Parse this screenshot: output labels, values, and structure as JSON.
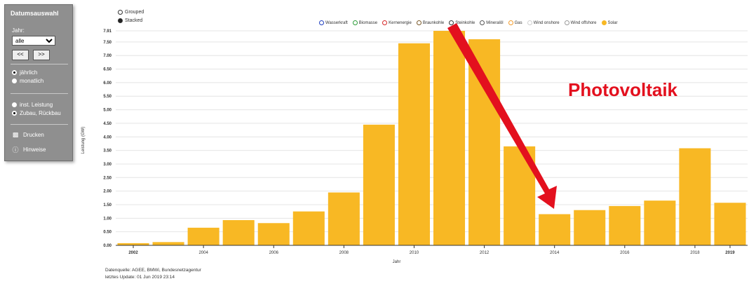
{
  "panel": {
    "title": "Datumsauswahl",
    "year_label": "Jahr:",
    "year_value": "alle",
    "prev_label": "<<",
    "next_label": ">>",
    "period_options": [
      {
        "label": "jährlich",
        "checked": true
      },
      {
        "label": "monatlich",
        "checked": false
      }
    ],
    "mode_options": [
      {
        "label": "inst. Leistung",
        "checked": false
      },
      {
        "label": "Zubau, Rückbau",
        "checked": true
      }
    ],
    "print_label": "Drucken",
    "info_label": "Hinweise"
  },
  "display_modes": {
    "grouped": "Grouped",
    "stacked": "Stacked",
    "selected": "stacked"
  },
  "legend": [
    {
      "name": "Wasserkraft",
      "color": "#1f3fbf"
    },
    {
      "name": "Biomasse",
      "color": "#2e9e3a"
    },
    {
      "name": "Kernenergie",
      "color": "#d62728"
    },
    {
      "name": "Braunkohle",
      "color": "#7a5a2a"
    },
    {
      "name": "Steinkohle",
      "color": "#333333"
    },
    {
      "name": "Mineralöl",
      "color": "#555555"
    },
    {
      "name": "Gas",
      "color": "#f39c2b"
    },
    {
      "name": "Wind onshore",
      "color": "#cfcfcf"
    },
    {
      "name": "Wind offshore",
      "color": "#9a9a9a"
    },
    {
      "name": "Solar",
      "color": "#f8b824",
      "filled": true
    }
  ],
  "chart_data": {
    "type": "bar",
    "title": "",
    "xlabel": "Jahr",
    "ylabel": "Leistung (GW)",
    "x": [
      2002,
      2003,
      2004,
      2005,
      2006,
      2007,
      2008,
      2009,
      2010,
      2011,
      2012,
      2013,
      2014,
      2015,
      2016,
      2017,
      2018,
      2019
    ],
    "series": [
      {
        "name": "Solar",
        "values": [
          0.08,
          0.12,
          0.65,
          0.93,
          0.82,
          1.25,
          1.95,
          4.45,
          7.45,
          7.91,
          7.6,
          3.65,
          1.15,
          1.3,
          1.45,
          1.65,
          3.58,
          1.57
        ]
      }
    ],
    "ylim": [
      0,
      7.91
    ],
    "yticks": [
      "0.00",
      "0.50",
      "1.00",
      "1.50",
      "2.00",
      "2.50",
      "3.00",
      "3.50",
      "4.00",
      "4.50",
      "5.00",
      "5.50",
      "6.00",
      "6.50",
      "7.00",
      "7.50",
      "7.91"
    ],
    "xtick_labels": [
      "2002",
      "2004",
      "2006",
      "2008",
      "2010",
      "2012",
      "2014",
      "2016",
      "2018",
      "2019"
    ],
    "bar_color": "#f8b824",
    "annotation": {
      "text": "Photovoltaik",
      "color": "#e3101e"
    },
    "grid": true
  },
  "footer": {
    "source": "Datenquelle: AGEE, BMWi, Bundesnetzagentur",
    "update": "letztes Update: 01 Jun 2019 23:14"
  }
}
